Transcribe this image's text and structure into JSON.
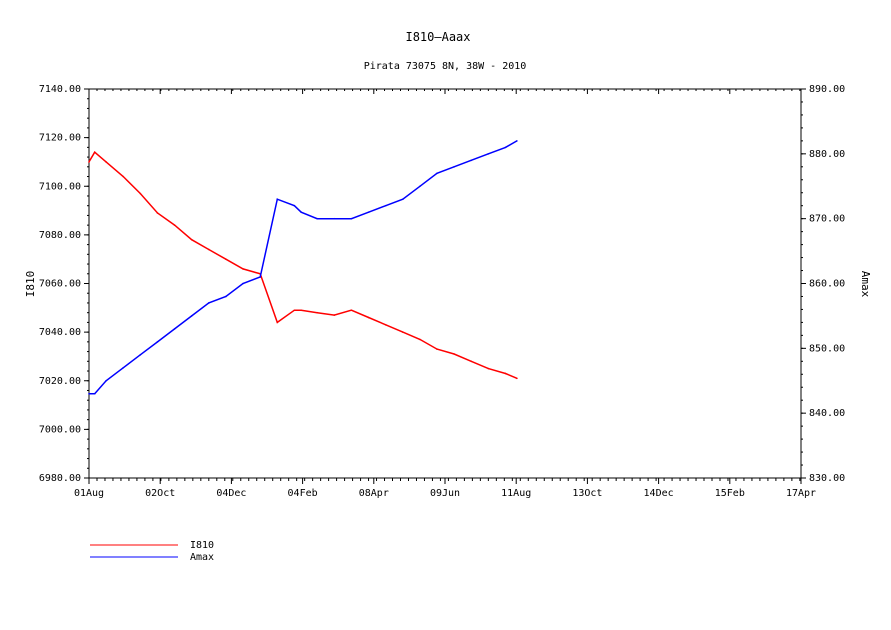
{
  "chart_data": {
    "type": "line",
    "title": "I810—Aaax",
    "subtitle": "Pirata 73075 8N, 38W - 2010",
    "xlabel": "",
    "x_ticks": [
      "01Aug",
      "02Oct",
      "04Dec",
      "04Feb",
      "08Apr",
      "09Jun",
      "11Aug",
      "13Oct",
      "14Dec",
      "15Feb",
      "17Apr"
    ],
    "y_left": {
      "label": "I810",
      "ylim": [
        6980,
        7140
      ],
      "ticks": [
        "6980.00",
        "7000.00",
        "7020.00",
        "7040.00",
        "7060.00",
        "7080.00",
        "7100.00",
        "7120.00",
        "7140.00"
      ]
    },
    "y_right": {
      "label": "Amax",
      "ylim": [
        830,
        890
      ],
      "ticks": [
        "830.00",
        "840.00",
        "850.00",
        "860.00",
        "870.00",
        "880.00",
        "890.00"
      ]
    },
    "grid": false,
    "legend_position": "bottom-left",
    "series": [
      {
        "name": "I810",
        "axis": "left",
        "color": "#ff0000",
        "x_days": [
          0,
          5,
          15,
          30,
          45,
          60,
          75,
          90,
          105,
          120,
          135,
          150,
          165,
          180,
          186,
          200,
          215,
          230,
          245,
          260,
          275,
          290,
          305,
          320,
          335,
          350,
          365,
          375
        ],
        "y": [
          7110,
          7114,
          7110,
          7104,
          7097,
          7089,
          7084,
          7078,
          7074,
          7070,
          7066,
          7064,
          7044,
          7049,
          7049,
          7048,
          7047,
          7049,
          7046,
          7043,
          7040,
          7037,
          7033,
          7031,
          7028,
          7025,
          7023,
          7021
        ]
      },
      {
        "name": "Amax",
        "axis": "right",
        "color": "#0000ff",
        "x_days": [
          0,
          5,
          15,
          30,
          45,
          60,
          75,
          90,
          105,
          120,
          135,
          150,
          165,
          180,
          186,
          200,
          215,
          230,
          245,
          260,
          275,
          290,
          305,
          320,
          335,
          350,
          365,
          375
        ],
        "y": [
          843,
          843,
          845,
          847,
          849,
          851,
          853,
          855,
          857,
          858,
          860,
          861,
          873,
          872,
          871,
          870,
          870,
          870,
          871,
          872,
          873,
          875,
          877,
          878,
          879,
          880,
          881,
          882
        ]
      }
    ]
  },
  "legend": [
    {
      "label": "I810",
      "color": "#ff0000"
    },
    {
      "label": "Amax",
      "color": "#0000ff"
    }
  ]
}
